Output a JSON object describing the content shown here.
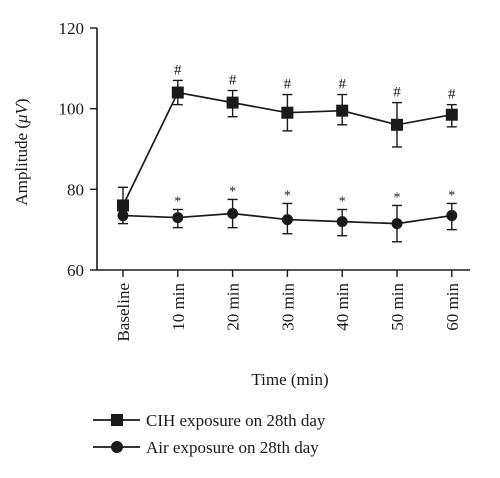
{
  "chart_data": {
    "type": "line",
    "xlabel": "Time (min)",
    "ylabel_text": "Amplitude (",
    "ylabel_unit": "μV",
    "ylabel_close": ")",
    "categories": [
      "Baseline",
      "10 min",
      "20 min",
      "30 min",
      "40 min",
      "50 min",
      "60 min"
    ],
    "ylim": [
      60,
      120
    ],
    "yticks": [
      "60",
      "80",
      "100",
      "120"
    ],
    "grid": false,
    "legend_position": "bottom",
    "series": [
      {
        "name": "CIH exposure on 28th day",
        "marker": "square",
        "values": [
          76,
          104,
          101.5,
          99,
          99.5,
          96,
          98.5
        ],
        "err_upper": [
          80.5,
          107,
          104.5,
          103.5,
          103.5,
          101.5,
          101
        ],
        "err_lower": [
          73,
          101,
          98,
          94.5,
          96,
          90.5,
          95.5
        ],
        "annotation": [
          "",
          "#",
          "#",
          "#",
          "#",
          "#",
          "#"
        ]
      },
      {
        "name": "Air exposure on 28th day",
        "marker": "circle",
        "values": [
          73.5,
          73,
          74,
          72.5,
          72,
          71.5,
          73.5
        ],
        "err_upper": [
          75.5,
          75,
          77.5,
          76.5,
          75,
          76,
          76.5
        ],
        "err_lower": [
          71.5,
          70.5,
          70.5,
          69,
          68.5,
          67,
          70
        ],
        "annotation": [
          "",
          "*",
          "*",
          "*",
          "*",
          "*",
          "*"
        ]
      }
    ]
  }
}
